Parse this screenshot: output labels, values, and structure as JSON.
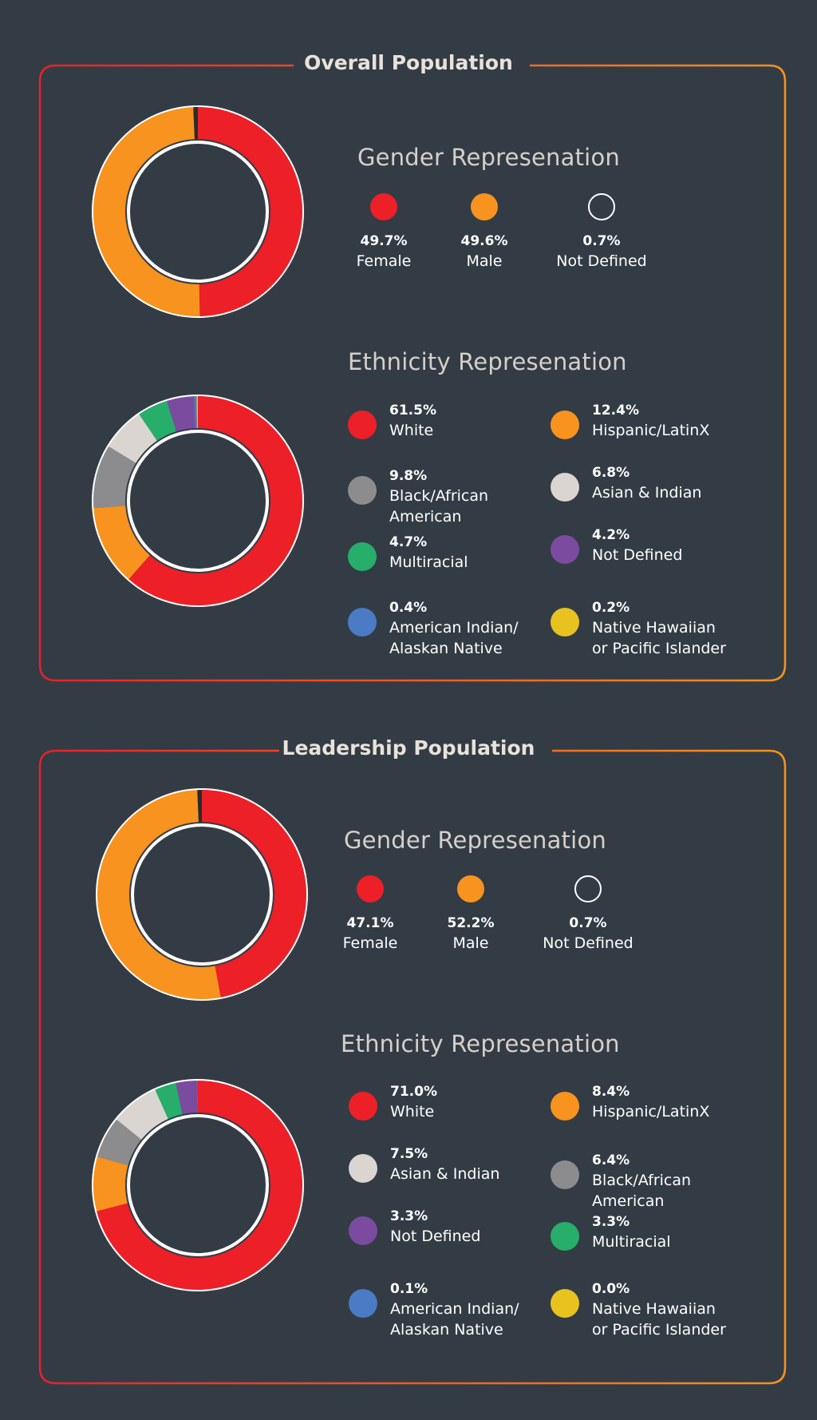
{
  "panels": [
    {
      "title": "Overall Population",
      "gender": {
        "title": "Gender Represenation",
        "items": [
          {
            "pct": "49.7%",
            "label": "Female",
            "color": "#ed1f27"
          },
          {
            "pct": "49.6%",
            "label": "Male",
            "color": "#f7931e"
          },
          {
            "pct": "0.7%",
            "label": "Not Defined",
            "color": "none"
          }
        ]
      },
      "ethnicity": {
        "title": "Ethnicity Represenation",
        "items": [
          {
            "pct": "61.5%",
            "label": "White",
            "color": "#ed1f27"
          },
          {
            "pct": "12.4%",
            "label": "Hispanic/LatinX",
            "color": "#f7931e"
          },
          {
            "pct": "9.8%",
            "label": "Black/African\nAmerican",
            "color": "#8c8c8f"
          },
          {
            "pct": "6.8%",
            "label": "Asian & Indian",
            "color": "#dad5d0"
          },
          {
            "pct": "4.7%",
            "label": "Multiracial",
            "color": "#27ae6a"
          },
          {
            "pct": "4.2%",
            "label": "Not Defined",
            "color": "#7b4ba0"
          },
          {
            "pct": "0.4%",
            "label": "American Indian/\nAlaskan Native",
            "color": "#4a7bc4"
          },
          {
            "pct": "0.2%",
            "label": "Native Hawaiian\nor Pacific Islander",
            "color": "#e8c21f"
          }
        ]
      }
    },
    {
      "title": "Leadership Population",
      "gender": {
        "title": "Gender Represenation",
        "items": [
          {
            "pct": "47.1%",
            "label": "Female",
            "color": "#ed1f27"
          },
          {
            "pct": "52.2%",
            "label": "Male",
            "color": "#f7931e"
          },
          {
            "pct": "0.7%",
            "label": "Not Defined",
            "color": "none"
          }
        ]
      },
      "ethnicity": {
        "title": "Ethnicity Represenation",
        "items": [
          {
            "pct": "71.0%",
            "label": "White",
            "color": "#ed1f27"
          },
          {
            "pct": "8.4%",
            "label": "Hispanic/LatinX",
            "color": "#f7931e"
          },
          {
            "pct": "7.5%",
            "label": "Asian & Indian",
            "color": "#dad5d0"
          },
          {
            "pct": "6.4%",
            "label": "Black/African\nAmerican",
            "color": "#8c8c8f"
          },
          {
            "pct": "3.3%",
            "label": "Not Defined",
            "color": "#7b4ba0"
          },
          {
            "pct": "3.3%",
            "label": "Multiracial",
            "color": "#27ae6a"
          },
          {
            "pct": "0.1%",
            "label": "American Indian/\nAlaskan Native",
            "color": "#4a7bc4"
          },
          {
            "pct": "0.0%",
            "label": "Native Hawaiian\nor Pacific Islander",
            "color": "#e8c21f"
          }
        ]
      }
    }
  ],
  "chart_data": [
    {
      "type": "pie",
      "title": "",
      "categories": [
        "Female",
        "Male",
        "Not Defined"
      ],
      "values": [
        49.7,
        49.6,
        0.7
      ],
      "colors": [
        "#ed1f27",
        "#f7931e",
        "#2b2b2b"
      ]
    },
    {
      "type": "pie",
      "title": "",
      "categories": [
        "White",
        "Hispanic/LatinX",
        "Black/African American",
        "Asian & Indian",
        "Multiracial",
        "Not Defined",
        "American Indian/Alaskan Native",
        "Native Hawaiian or Pacific Islander"
      ],
      "values": [
        61.5,
        12.4,
        9.8,
        6.8,
        4.7,
        4.2,
        0.4,
        0.2
      ],
      "colors": [
        "#ed1f27",
        "#f7931e",
        "#8c8c8f",
        "#dad5d0",
        "#27ae6a",
        "#7b4ba0",
        "#4a7bc4",
        "#e8c21f"
      ]
    },
    {
      "type": "pie",
      "title": "",
      "categories": [
        "Female",
        "Male",
        "Not Defined"
      ],
      "values": [
        47.1,
        52.2,
        0.7
      ],
      "colors": [
        "#ed1f27",
        "#f7931e",
        "#2b2b2b"
      ]
    },
    {
      "type": "pie",
      "title": "",
      "categories": [
        "White",
        "Hispanic/LatinX",
        "Black/African American",
        "Asian & Indian",
        "Multiracial",
        "Not Defined",
        "American Indian/Alaskan Native",
        "Native Hawaiian or Pacific Islander"
      ],
      "values": [
        71.0,
        8.4,
        6.4,
        7.5,
        3.3,
        3.3,
        0.1,
        0.0
      ],
      "colors": [
        "#ed1f27",
        "#f7931e",
        "#8c8c8f",
        "#dad5d0",
        "#27ae6a",
        "#7b4ba0",
        "#4a7bc4",
        "#e8c21f"
      ]
    }
  ]
}
